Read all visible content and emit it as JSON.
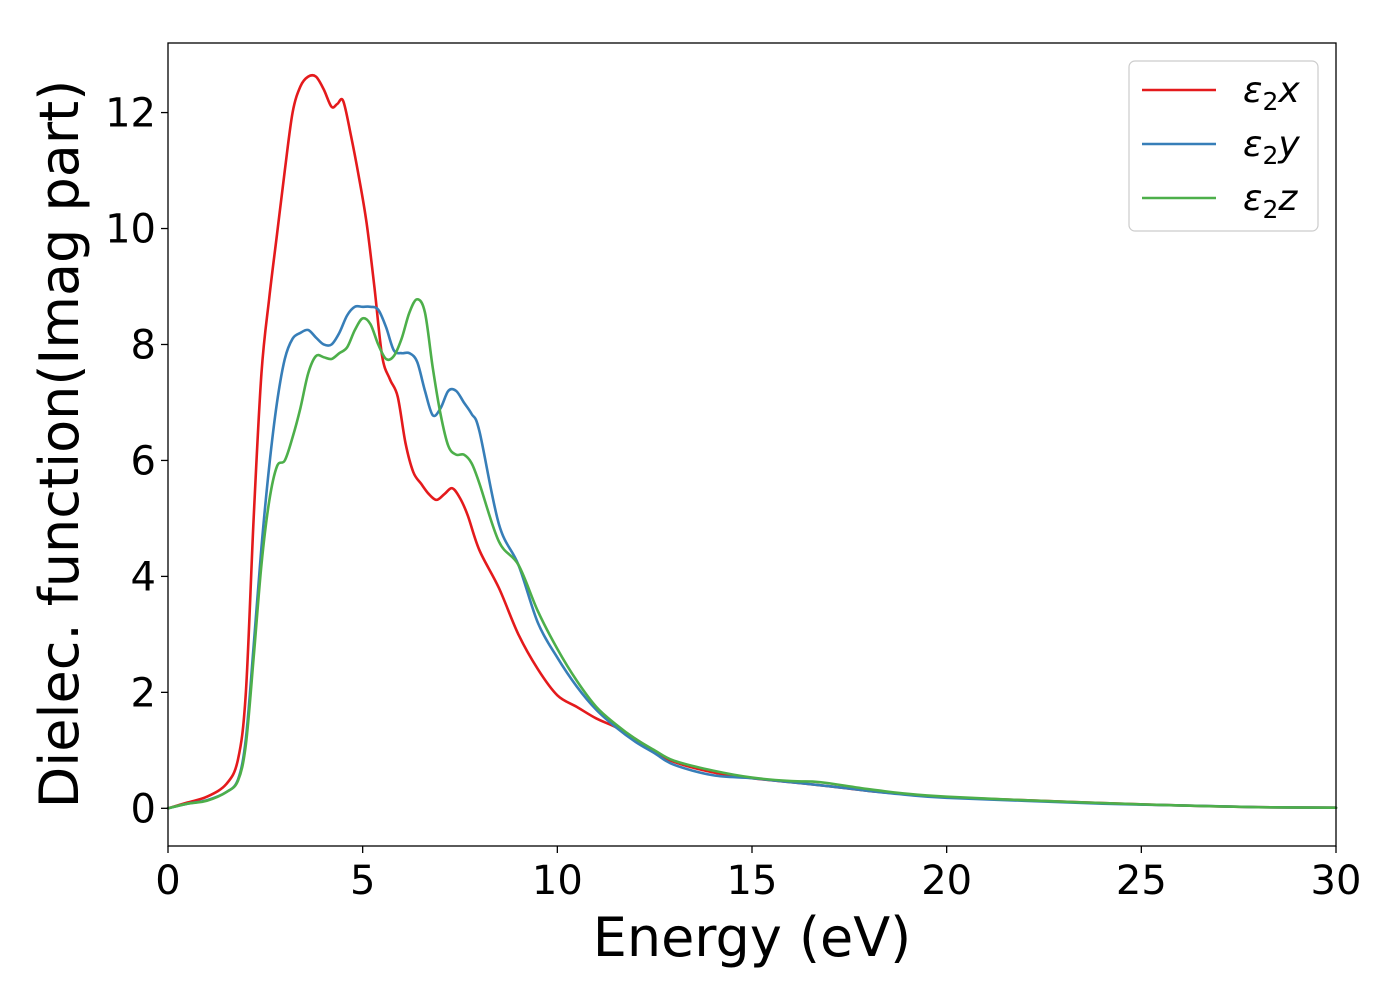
{
  "chart_data": {
    "type": "line",
    "title": "",
    "xlabel": "Energy (eV)",
    "ylabel": "Dielec. function(Imag part)",
    "xlim": [
      0,
      30
    ],
    "ylim": [
      -0.65,
      13.2
    ],
    "xticks": [
      0,
      5,
      10,
      15,
      20,
      25,
      30
    ],
    "yticks": [
      0,
      2,
      4,
      6,
      8,
      10,
      12
    ],
    "grid": false,
    "legend_position": "top-right",
    "series": [
      {
        "name": "ε₂x",
        "legend_main": "ε",
        "legend_sub": "2",
        "legend_var": "x",
        "color": "#e41a1c",
        "x": [
          0,
          0.5,
          1.0,
          1.5,
          1.8,
          2.0,
          2.2,
          2.4,
          2.6,
          2.8,
          3.0,
          3.2,
          3.4,
          3.6,
          3.8,
          4.0,
          4.2,
          4.35,
          4.5,
          4.7,
          4.9,
          5.1,
          5.3,
          5.5,
          5.7,
          5.9,
          6.1,
          6.3,
          6.5,
          6.7,
          6.9,
          7.1,
          7.3,
          7.5,
          7.7,
          8.0,
          8.5,
          9.0,
          9.5,
          10.0,
          10.5,
          11.0,
          11.5,
          12.0,
          12.5,
          13.0,
          14.0,
          15.0,
          16.0,
          17.0,
          18.0,
          19.0,
          20.0,
          22.0,
          24.0,
          26.0,
          28.0,
          30.0
        ],
        "y": [
          0.0,
          0.1,
          0.2,
          0.42,
          0.85,
          2.0,
          5.0,
          7.5,
          8.8,
          9.9,
          11.0,
          12.0,
          12.45,
          12.62,
          12.62,
          12.4,
          12.1,
          12.15,
          12.2,
          11.6,
          10.9,
          10.1,
          9.0,
          7.8,
          7.4,
          7.1,
          6.3,
          5.8,
          5.6,
          5.42,
          5.32,
          5.42,
          5.52,
          5.35,
          5.05,
          4.45,
          3.8,
          3.0,
          2.4,
          1.95,
          1.75,
          1.55,
          1.4,
          1.2,
          0.98,
          0.8,
          0.62,
          0.52,
          0.45,
          0.38,
          0.3,
          0.24,
          0.19,
          0.14,
          0.09,
          0.05,
          0.02,
          0.01
        ]
      },
      {
        "name": "ε₂y",
        "legend_main": "ε",
        "legend_sub": "2",
        "legend_var": "y",
        "color": "#377eb8",
        "x": [
          0,
          0.5,
          1.0,
          1.5,
          1.8,
          2.0,
          2.2,
          2.4,
          2.6,
          2.8,
          3.0,
          3.2,
          3.4,
          3.6,
          3.8,
          4.0,
          4.2,
          4.4,
          4.6,
          4.8,
          5.0,
          5.2,
          5.4,
          5.6,
          5.8,
          6.0,
          6.2,
          6.4,
          6.6,
          6.8,
          7.0,
          7.2,
          7.4,
          7.6,
          7.8,
          8.0,
          8.5,
          9.0,
          9.5,
          10.0,
          10.5,
          11.0,
          11.5,
          12.0,
          12.5,
          13.0,
          14.0,
          15.0,
          16.0,
          17.0,
          18.0,
          19.0,
          20.0,
          22.0,
          24.0,
          26.0,
          28.0,
          30.0
        ],
        "y": [
          0.0,
          0.08,
          0.14,
          0.28,
          0.5,
          1.2,
          2.8,
          4.5,
          5.9,
          7.0,
          7.75,
          8.1,
          8.2,
          8.25,
          8.12,
          8.0,
          8.0,
          8.2,
          8.5,
          8.65,
          8.65,
          8.65,
          8.6,
          8.3,
          7.9,
          7.85,
          7.85,
          7.7,
          7.2,
          6.78,
          6.9,
          7.2,
          7.2,
          7.0,
          6.8,
          6.5,
          4.9,
          4.2,
          3.2,
          2.6,
          2.1,
          1.7,
          1.4,
          1.15,
          0.95,
          0.75,
          0.57,
          0.52,
          0.45,
          0.38,
          0.3,
          0.23,
          0.18,
          0.13,
          0.08,
          0.05,
          0.02,
          0.01
        ]
      },
      {
        "name": "ε₂z",
        "legend_main": "ε",
        "legend_sub": "2",
        "legend_var": "z",
        "color": "#4daf4a",
        "x": [
          0,
          0.5,
          1.0,
          1.5,
          1.8,
          2.0,
          2.2,
          2.4,
          2.6,
          2.8,
          3.0,
          3.2,
          3.4,
          3.6,
          3.8,
          4.0,
          4.2,
          4.4,
          4.6,
          4.8,
          5.0,
          5.2,
          5.4,
          5.6,
          5.8,
          6.0,
          6.2,
          6.4,
          6.6,
          6.8,
          7.0,
          7.2,
          7.4,
          7.6,
          7.8,
          8.0,
          8.5,
          9.0,
          9.5,
          10.0,
          10.5,
          11.0,
          11.5,
          12.0,
          12.5,
          13.0,
          14.0,
          15.0,
          16.0,
          16.6,
          17.0,
          18.0,
          19.0,
          20.0,
          22.0,
          24.0,
          26.0,
          28.0,
          30.0
        ],
        "y": [
          0.0,
          0.08,
          0.13,
          0.28,
          0.48,
          1.1,
          2.6,
          4.2,
          5.3,
          5.9,
          6.0,
          6.4,
          6.9,
          7.5,
          7.8,
          7.78,
          7.75,
          7.85,
          7.95,
          8.25,
          8.45,
          8.35,
          8.0,
          7.75,
          7.8,
          8.1,
          8.55,
          8.78,
          8.55,
          7.6,
          6.8,
          6.25,
          6.1,
          6.1,
          5.95,
          5.6,
          4.6,
          4.2,
          3.4,
          2.75,
          2.2,
          1.75,
          1.45,
          1.2,
          1.0,
          0.82,
          0.65,
          0.53,
          0.47,
          0.46,
          0.43,
          0.33,
          0.25,
          0.2,
          0.14,
          0.09,
          0.05,
          0.02,
          0.01
        ]
      }
    ]
  }
}
